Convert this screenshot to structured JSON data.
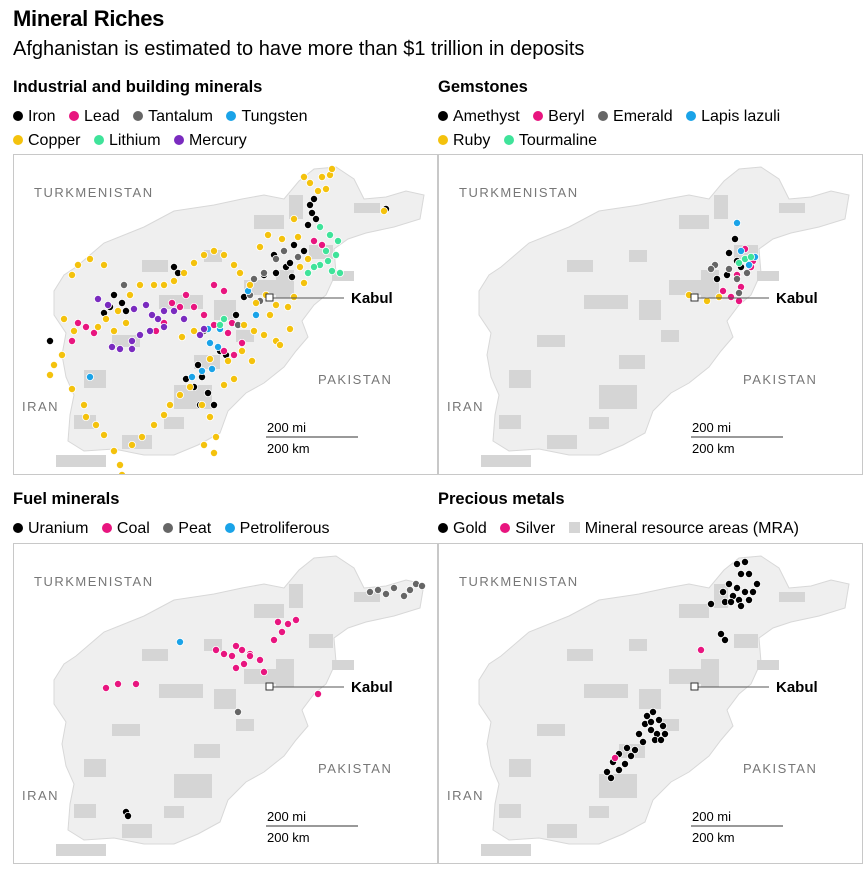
{
  "title": "Mineral Riches",
  "subtitle": "Afghanistan is estimated to have more than $1 trillion in deposits",
  "map_labels": {
    "turkmenistan": "TURKMENISTAN",
    "pakistan": "PAKISTAN",
    "iran": "IRAN",
    "kabul": "Kabul",
    "scale_mi": "200 mi",
    "scale_km": "200 km"
  },
  "colors": {
    "black": "#000000",
    "pink": "#e8157f",
    "gray": "#666666",
    "blue": "#1aa3e8",
    "yellow": "#f4c20d",
    "green": "#3fe39a",
    "purple": "#7a2bbf",
    "mra": "#d5d5d5",
    "land": "#efefef"
  },
  "panels": [
    {
      "title": "Industrial and building minerals",
      "legend": [
        {
          "label": "Iron",
          "color": "#000000"
        },
        {
          "label": "Lead",
          "color": "#e8157f"
        },
        {
          "label": "Tantalum",
          "color": "#666666"
        },
        {
          "label": "Tungsten",
          "color": "#1aa3e8"
        },
        {
          "label": "Copper",
          "color": "#f4c20d"
        },
        {
          "label": "Lithium",
          "color": "#3fe39a"
        },
        {
          "label": "Mercury",
          "color": "#7a2bbf"
        }
      ]
    },
    {
      "title": "Gemstones",
      "legend": [
        {
          "label": "Amethyst",
          "color": "#000000"
        },
        {
          "label": "Beryl",
          "color": "#e8157f"
        },
        {
          "label": "Emerald",
          "color": "#666666"
        },
        {
          "label": "Lapis lazuli",
          "color": "#1aa3e8"
        },
        {
          "label": "Ruby",
          "color": "#f4c20d"
        },
        {
          "label": "Tourmaline",
          "color": "#3fe39a"
        }
      ]
    },
    {
      "title": "Fuel minerals",
      "legend": [
        {
          "label": "Uranium",
          "color": "#000000"
        },
        {
          "label": "Coal",
          "color": "#e8157f"
        },
        {
          "label": "Peat",
          "color": "#666666"
        },
        {
          "label": "Petroliferous",
          "color": "#1aa3e8"
        }
      ]
    },
    {
      "title": "Precious metals",
      "legend": [
        {
          "label": "Gold",
          "color": "#000000"
        },
        {
          "label": "Silver",
          "color": "#e8157f"
        },
        {
          "label": "Mineral resource areas (MRA)",
          "color": "#d5d5d5",
          "square": true
        }
      ]
    }
  ]
}
